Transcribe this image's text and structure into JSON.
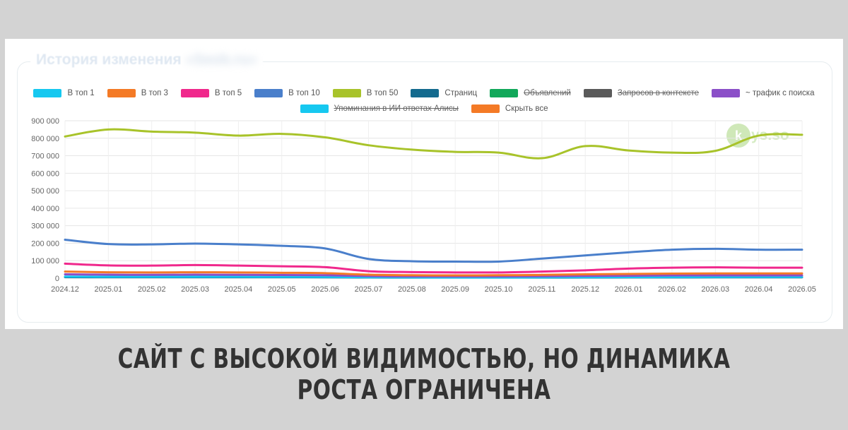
{
  "card": {
    "title": "История изменения",
    "title_blurred": "«Seob.ru»"
  },
  "watermark": {
    "mark": "k",
    "text": "ys.so"
  },
  "caption": "САЙТ С ВЫСОКОЙ ВИДИМОСТЬЮ, НО ДИНАМИКА РОСТА ОГРАНИЧЕНА",
  "chart_data": {
    "type": "line",
    "title": "",
    "xlabel": "",
    "ylabel": "",
    "ylim": [
      0,
      900000
    ],
    "y_ticks": [
      0,
      100000,
      200000,
      300000,
      400000,
      500000,
      600000,
      700000,
      800000,
      900000
    ],
    "y_tick_labels": [
      "0",
      "100 000",
      "200 000",
      "300 000",
      "400 000",
      "500 000",
      "600 000",
      "700 000",
      "800 000",
      "900 000"
    ],
    "grid": true,
    "legend_position": "top",
    "categories": [
      "2024.12",
      "2025.01",
      "2025.02",
      "2025.03",
      "2025.04",
      "2025.05",
      "2025.06",
      "2025.07",
      "2025.08",
      "2025.09",
      "2025.10",
      "2025.11",
      "2025.12",
      "2026.01",
      "2026.02",
      "2026.03",
      "2026.04",
      "2026.05"
    ],
    "legend": [
      [
        {
          "name": "В топ 1",
          "color": "#16c8f0",
          "hidden": false
        },
        {
          "name": "В топ 3",
          "color": "#f47a26",
          "hidden": false
        },
        {
          "name": "В топ 5",
          "color": "#f0288c",
          "hidden": false
        },
        {
          "name": "В топ 10",
          "color": "#4a7fcb",
          "hidden": false
        },
        {
          "name": "В топ 50",
          "color": "#a8c32a",
          "hidden": false
        },
        {
          "name": "Страниц",
          "color": "#136a8e",
          "hidden": false
        },
        {
          "name": "Объявлений",
          "color": "#12a85a",
          "hidden": true
        },
        {
          "name": "Запросов в контексте",
          "color": "#5a5a5a",
          "hidden": true
        },
        {
          "name": "~ трафик с поиска",
          "color": "#8b4fc8",
          "hidden": false
        }
      ],
      [
        {
          "name": "Упоминания в ИИ ответах Алисы",
          "color": "#16c8f0",
          "hidden": true
        },
        {
          "name": "Скрыть все",
          "color": "#f47a26",
          "hidden": false
        }
      ]
    ],
    "series": [
      {
        "name": "В топ 50",
        "color": "#a8c32a",
        "values": [
          810000,
          850000,
          838000,
          832000,
          815000,
          825000,
          805000,
          760000,
          735000,
          722000,
          718000,
          686000,
          755000,
          730000,
          718000,
          728000,
          815000,
          820000
        ]
      },
      {
        "name": "В топ 10",
        "color": "#4a7fcb",
        "values": [
          220000,
          195000,
          193000,
          198000,
          193000,
          185000,
          170000,
          110000,
          97000,
          95000,
          95000,
          112000,
          130000,
          148000,
          163000,
          168000,
          163000,
          163000
        ]
      },
      {
        "name": "В топ 5",
        "color": "#f0288c",
        "values": [
          83000,
          73000,
          72000,
          75000,
          72000,
          68000,
          63000,
          40000,
          35000,
          33000,
          33000,
          38000,
          45000,
          55000,
          60000,
          62000,
          60000,
          60000
        ]
      },
      {
        "name": "В топ 3",
        "color": "#f47a26",
        "values": [
          38000,
          34000,
          33000,
          34000,
          33000,
          31000,
          29000,
          20000,
          17000,
          16000,
          17000,
          19000,
          22000,
          24000,
          26000,
          27000,
          27000,
          27000
        ]
      },
      {
        "name": "~ трафик с поиска",
        "color": "#8b4fc8",
        "values": [
          22000,
          20000,
          19000,
          20000,
          19000,
          18000,
          17000,
          12000,
          10000,
          10000,
          10000,
          11000,
          13000,
          14000,
          16000,
          16000,
          16000,
          16000
        ]
      },
      {
        "name": "В топ 1",
        "color": "#16c8f0",
        "values": [
          9000,
          8000,
          8000,
          8000,
          8000,
          7500,
          7000,
          5000,
          4500,
          4000,
          4000,
          4500,
          5500,
          6000,
          6500,
          7000,
          7000,
          7000
        ]
      },
      {
        "name": "Страниц",
        "color": "#136a8e",
        "values": [
          6000,
          5500,
          5500,
          5500,
          5500,
          5500,
          5000,
          4000,
          3500,
          3500,
          3500,
          3500,
          4000,
          4500,
          4500,
          5000,
          5000,
          5000
        ]
      }
    ]
  }
}
